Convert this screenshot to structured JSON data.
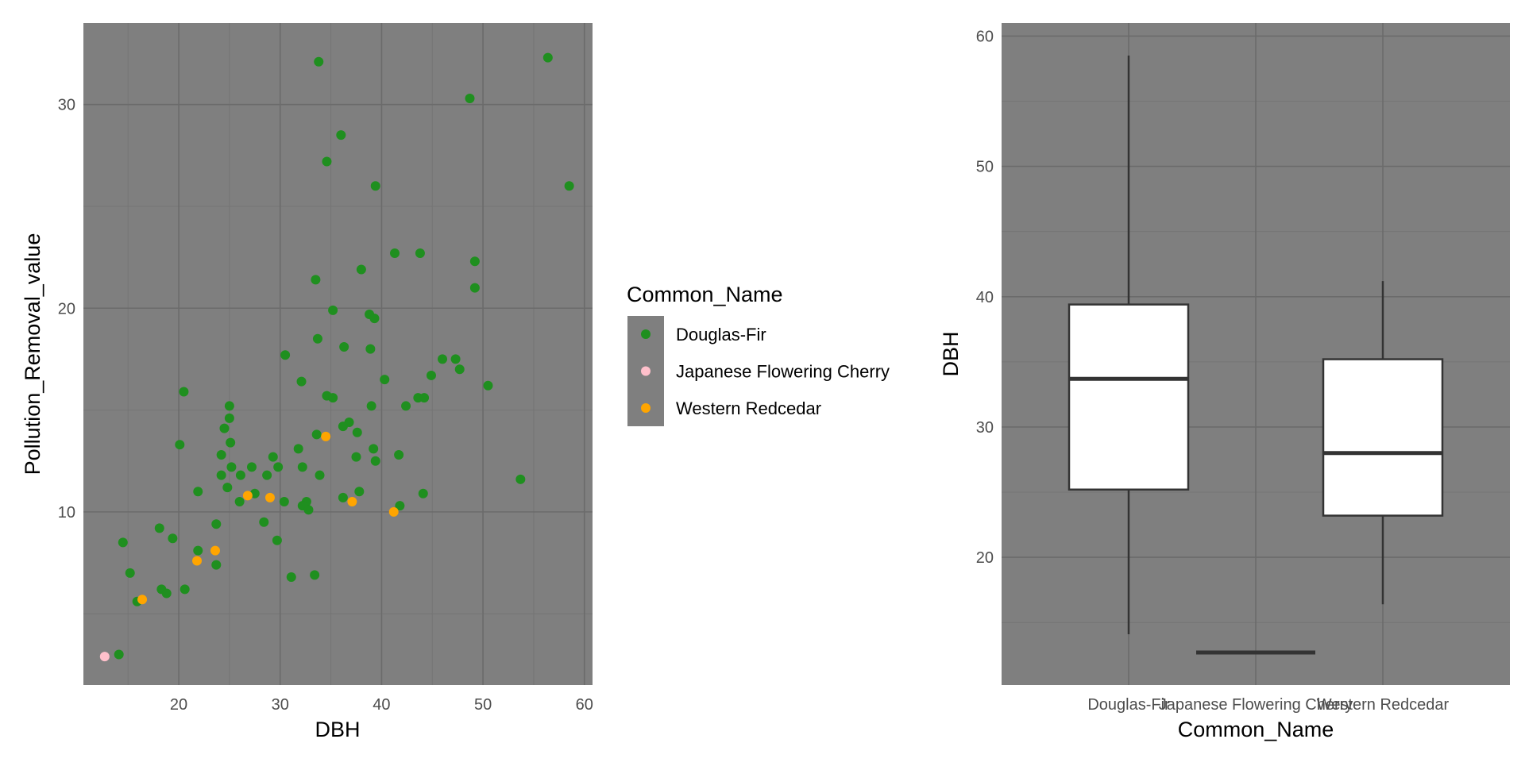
{
  "colors": {
    "panel_background": "#7f7f7f",
    "gridline_major": "#6b6b6b",
    "gridline_minor": "#757575",
    "box_fill": "#ffffff",
    "box_line": "#333333"
  },
  "chart_data": [
    {
      "type": "scatter",
      "xlabel": "DBH",
      "ylabel": "Pollution_Removal_value",
      "xlim": [
        10.6,
        60.8
      ],
      "ylim": [
        1.5,
        34.0
      ],
      "xticks": [
        "20",
        "30",
        "40",
        "50",
        "60"
      ],
      "yticks": [
        "10",
        "20",
        "30"
      ],
      "grid": true,
      "legend": {
        "title": "Common_Name",
        "placement": "right",
        "entries": [
          {
            "label": "Douglas-Fir",
            "color": "#1f8f1f"
          },
          {
            "label": "Japanese Flowering Cherry",
            "color": "#ffc0cb"
          },
          {
            "label": "Western Redcedar",
            "color": "#ffa500"
          }
        ]
      },
      "series": [
        {
          "name": "Douglas-Fir",
          "color": "#1f8f1f",
          "points": [
            [
              33.8,
              32.1
            ],
            [
              56.4,
              32.3
            ],
            [
              48.7,
              30.3
            ],
            [
              36.0,
              28.5
            ],
            [
              34.6,
              27.2
            ],
            [
              39.4,
              26.0
            ],
            [
              58.5,
              26.0
            ],
            [
              41.3,
              22.7
            ],
            [
              43.8,
              22.7
            ],
            [
              49.2,
              22.3
            ],
            [
              38.0,
              21.9
            ],
            [
              33.5,
              21.4
            ],
            [
              49.2,
              21.0
            ],
            [
              35.2,
              19.9
            ],
            [
              38.8,
              19.7
            ],
            [
              39.3,
              19.5
            ],
            [
              33.7,
              18.5
            ],
            [
              36.3,
              18.1
            ],
            [
              38.9,
              18.0
            ],
            [
              30.5,
              17.7
            ],
            [
              46.0,
              17.5
            ],
            [
              47.3,
              17.5
            ],
            [
              47.7,
              17.0
            ],
            [
              44.9,
              16.7
            ],
            [
              40.3,
              16.5
            ],
            [
              32.1,
              16.4
            ],
            [
              50.5,
              16.2
            ],
            [
              20.5,
              15.9
            ],
            [
              34.6,
              15.7
            ],
            [
              35.2,
              15.6
            ],
            [
              43.6,
              15.6
            ],
            [
              44.2,
              15.6
            ],
            [
              25.0,
              15.2
            ],
            [
              39.0,
              15.2
            ],
            [
              42.4,
              15.2
            ],
            [
              25.0,
              14.6
            ],
            [
              36.8,
              14.4
            ],
            [
              24.5,
              14.1
            ],
            [
              36.2,
              14.2
            ],
            [
              33.6,
              13.8
            ],
            [
              37.6,
              13.9
            ],
            [
              20.1,
              13.3
            ],
            [
              25.1,
              13.4
            ],
            [
              31.8,
              13.1
            ],
            [
              39.2,
              13.1
            ],
            [
              24.2,
              12.8
            ],
            [
              29.3,
              12.7
            ],
            [
              37.5,
              12.7
            ],
            [
              41.7,
              12.8
            ],
            [
              39.4,
              12.5
            ],
            [
              25.2,
              12.2
            ],
            [
              27.2,
              12.2
            ],
            [
              29.8,
              12.2
            ],
            [
              32.2,
              12.2
            ],
            [
              24.2,
              11.8
            ],
            [
              26.1,
              11.8
            ],
            [
              28.7,
              11.8
            ],
            [
              33.9,
              11.8
            ],
            [
              53.7,
              11.6
            ],
            [
              24.8,
              11.2
            ],
            [
              21.9,
              11.0
            ],
            [
              27.5,
              10.9
            ],
            [
              37.8,
              11.0
            ],
            [
              44.1,
              10.9
            ],
            [
              26.0,
              10.5
            ],
            [
              30.4,
              10.5
            ],
            [
              32.6,
              10.5
            ],
            [
              36.2,
              10.7
            ],
            [
              32.2,
              10.3
            ],
            [
              41.8,
              10.3
            ],
            [
              32.8,
              10.1
            ],
            [
              28.4,
              9.5
            ],
            [
              23.7,
              9.4
            ],
            [
              18.1,
              9.2
            ],
            [
              14.5,
              8.5
            ],
            [
              19.4,
              8.7
            ],
            [
              29.7,
              8.6
            ],
            [
              21.9,
              8.1
            ],
            [
              23.7,
              7.4
            ],
            [
              15.2,
              7.0
            ],
            [
              31.1,
              6.8
            ],
            [
              33.4,
              6.9
            ],
            [
              18.3,
              6.2
            ],
            [
              20.6,
              6.2
            ],
            [
              18.8,
              6.0
            ],
            [
              15.9,
              5.6
            ],
            [
              14.1,
              3.0
            ]
          ]
        },
        {
          "name": "Japanese Flowering Cherry",
          "color": "#ffc0cb",
          "points": [
            [
              12.7,
              2.9
            ]
          ]
        },
        {
          "name": "Western Redcedar",
          "color": "#ffa500",
          "points": [
            [
              34.5,
              13.7
            ],
            [
              26.8,
              10.8
            ],
            [
              29.0,
              10.7
            ],
            [
              37.1,
              10.5
            ],
            [
              41.2,
              10.0
            ],
            [
              23.6,
              8.1
            ],
            [
              21.8,
              7.6
            ],
            [
              16.4,
              5.7
            ]
          ]
        }
      ]
    },
    {
      "type": "box",
      "xlabel": "Common_Name",
      "ylabel": "DBH",
      "ylim": [
        10.2,
        61.0
      ],
      "yticks": [
        "20",
        "30",
        "40",
        "50",
        "60"
      ],
      "categories": [
        "Douglas-Fir",
        "Japanese Flowering Cherry",
        "Western Redcedar"
      ],
      "grid": true,
      "boxes": [
        {
          "category": "Douglas-Fir",
          "whisker_low": 14.1,
          "q1": 25.2,
          "median": 33.7,
          "q3": 39.4,
          "whisker_high": 58.5
        },
        {
          "category": "Japanese Flowering Cherry",
          "whisker_low": 12.7,
          "q1": 12.7,
          "median": 12.7,
          "q3": 12.7,
          "whisker_high": 12.7
        },
        {
          "category": "Western Redcedar",
          "whisker_low": 16.4,
          "q1": 23.2,
          "median": 28.0,
          "q3": 35.2,
          "whisker_high": 41.2
        }
      ]
    }
  ]
}
